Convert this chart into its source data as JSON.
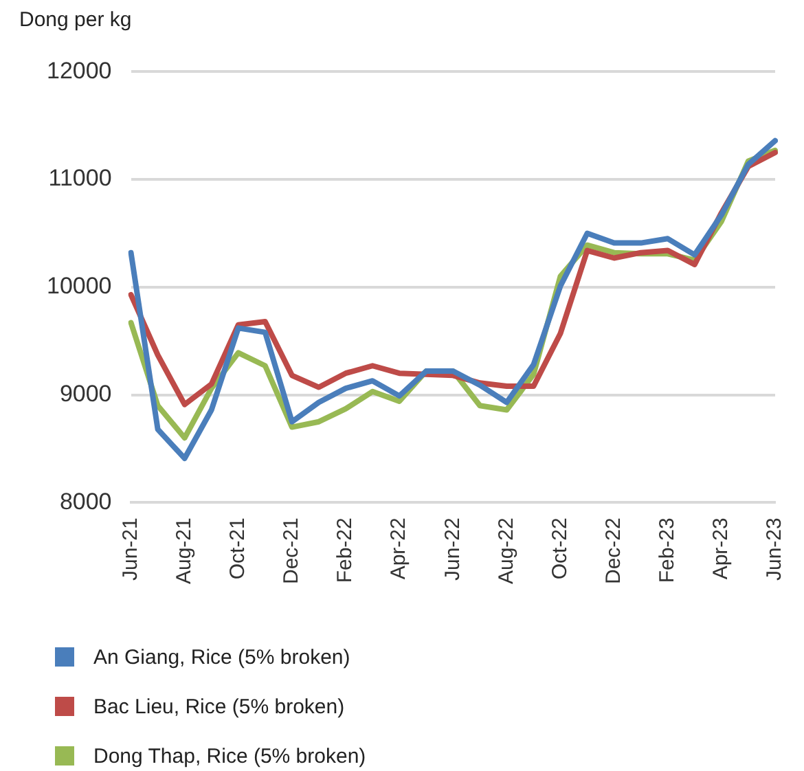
{
  "chart_data": {
    "type": "line",
    "ylabel": "Dong per kg",
    "categories": [
      "Jun-21",
      null,
      "Aug-21",
      null,
      "Oct-21",
      null,
      "Dec-21",
      null,
      "Feb-22",
      null,
      "Apr-22",
      null,
      "Jun-22",
      null,
      "Aug-22",
      null,
      "Oct-22",
      null,
      "Dec-22",
      null,
      "Feb-23",
      null,
      "Apr-23",
      null,
      "Jun-23"
    ],
    "series": [
      {
        "name": "An Giang, Rice (5% broken)",
        "color": "#4a7ebb",
        "values": [
          10320,
          8680,
          8410,
          8860,
          9620,
          9580,
          8750,
          8930,
          9060,
          9130,
          8990,
          9220,
          9220,
          9090,
          8930,
          9280,
          10010,
          10500,
          10410,
          10410,
          10450,
          10300,
          10670,
          11140,
          11360
        ]
      },
      {
        "name": "Bac Lieu, Rice (5% broken)",
        "color": "#be4b48",
        "values": [
          9930,
          9370,
          8910,
          9100,
          9650,
          9680,
          9180,
          9070,
          9200,
          9270,
          9200,
          9190,
          9180,
          9110,
          9080,
          9080,
          9570,
          10340,
          10270,
          10320,
          10340,
          10210,
          10690,
          11120,
          11250
        ]
      },
      {
        "name": "Dong Thap, Rice (5% broken)",
        "color": "#98b954",
        "values": [
          9670,
          8900,
          8600,
          9060,
          9390,
          9270,
          8700,
          8750,
          8870,
          9030,
          8940,
          9220,
          9220,
          8900,
          8860,
          9190,
          10100,
          10390,
          10320,
          10310,
          10310,
          10250,
          10610,
          11170,
          11270
        ]
      }
    ],
    "ylim": [
      8000,
      12000
    ],
    "yticks": [
      8000,
      9000,
      10000,
      11000,
      12000
    ],
    "grid": "y",
    "legend": "bottom",
    "marker": "none",
    "line_style": "solid"
  }
}
